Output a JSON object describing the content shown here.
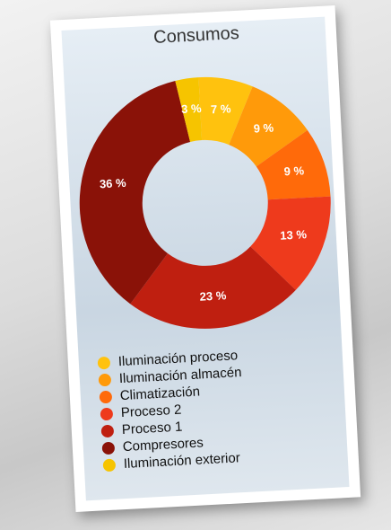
{
  "chart_data": {
    "type": "donut",
    "title": "Consumos",
    "categories": [
      "Iluminación proceso",
      "Iluminación almacén",
      "Climatización",
      "Proceso 2",
      "Proceso 1",
      "Compresores",
      "Iluminación exterior"
    ],
    "values": [
      7,
      9,
      9,
      13,
      23,
      36,
      3
    ],
    "value_labels": [
      "7 %",
      "9 %",
      "9 %",
      "13 %",
      "23 %",
      "36 %",
      "3 %"
    ],
    "colors": [
      "#ffc20e",
      "#ff9a0a",
      "#ff6a0a",
      "#ee3a1c",
      "#bf1f10",
      "#8a1208",
      "#f6c400"
    ]
  }
}
